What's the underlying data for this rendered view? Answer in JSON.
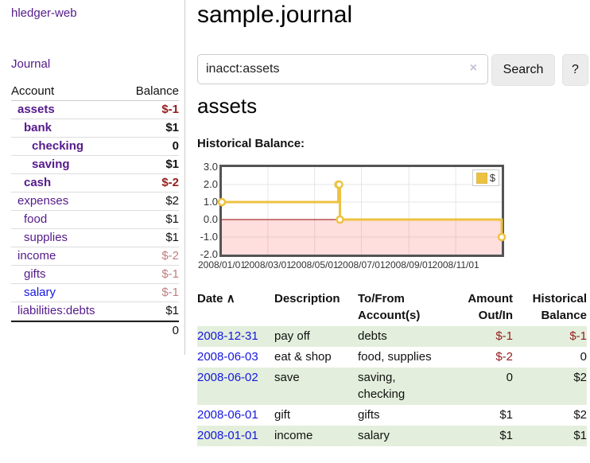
{
  "colors": {
    "link_visited_purple": "#551a8b",
    "link_blue": "#1616e0",
    "negative_strong": "#961c1c",
    "negative_soft": "#c17f7f",
    "row_stripe_green": "#e3efdc",
    "chart_series_yellow": "#edc240",
    "chart_negative_region": "rgba(255,70,70,0.18)",
    "chart_zero_line": "#990000"
  },
  "sidebar": {
    "brand": "hledger-web",
    "nav": {
      "journal": "Journal"
    },
    "table": {
      "account_header": "Account",
      "balance_header": "Balance"
    },
    "accounts": [
      {
        "name": "assets",
        "balance": "$-1"
      },
      {
        "name": "bank",
        "balance": "$1"
      },
      {
        "name": "checking",
        "balance": "0"
      },
      {
        "name": "saving",
        "balance": "$1"
      },
      {
        "name": "cash",
        "balance": "$-2"
      },
      {
        "name": "expenses",
        "balance": "$2"
      },
      {
        "name": "food",
        "balance": "$1"
      },
      {
        "name": "supplies",
        "balance": "$1"
      },
      {
        "name": "income",
        "balance": "$-2"
      },
      {
        "name": "gifts",
        "balance": "$-1"
      },
      {
        "name": "salary",
        "balance": "$-1"
      },
      {
        "name": "liabilities:debts",
        "balance": "$1"
      }
    ],
    "total": "0"
  },
  "main": {
    "title": "sample.journal",
    "search": {
      "value": "inacct:assets",
      "clear_icon": "×",
      "search_label": "Search",
      "help_label": "?"
    },
    "account_heading": "assets",
    "chart_label": "Historical Balance:"
  },
  "chart_data": {
    "type": "line",
    "step": true,
    "title": "Historical Balance",
    "legend_position": "top-right",
    "grid": true,
    "ylim": [
      -2,
      3
    ],
    "x_range": [
      "2008-01-01",
      "2008-12-31"
    ],
    "y_ticks": [
      3,
      2,
      1,
      0,
      -1,
      -2
    ],
    "y_tick_labels": [
      "3.0",
      "2.0",
      "1.0",
      "0.0",
      "-1.0",
      "-2.0"
    ],
    "x_tick_dates": [
      "2008-01-01",
      "2008-03-01",
      "2008-05-01",
      "2008-07-01",
      "2008-09-01",
      "2008-11-01"
    ],
    "x_tick_labels": [
      "2008/01/01",
      "2008/03/01",
      "2008/05/01",
      "2008/07/01",
      "2008/09/01",
      "2008/11/01"
    ],
    "series": [
      {
        "name": "$",
        "color": "#edc240",
        "points": [
          [
            "2008-01-01",
            1
          ],
          [
            "2008-06-01",
            2
          ],
          [
            "2008-06-02",
            2
          ],
          [
            "2008-06-03",
            0
          ],
          [
            "2008-12-31",
            -1
          ]
        ]
      }
    ]
  },
  "register": {
    "headers": {
      "date": "Date",
      "sort_icon": "∧",
      "description": "Description",
      "accounts": "To/From\nAccount(s)",
      "amount": "Amount\nOut/In",
      "balance": "Historical\nBalance"
    },
    "rows": [
      {
        "date": "2008-12-31",
        "description": "pay off",
        "accounts": "debts",
        "amount": "$-1",
        "balance": "$-1"
      },
      {
        "date": "2008-06-03",
        "description": "eat & shop",
        "accounts": "food, supplies",
        "amount": "$-2",
        "balance": "0"
      },
      {
        "date": "2008-06-02",
        "description": "save",
        "accounts": "saving,\nchecking",
        "amount": "0",
        "balance": "$2"
      },
      {
        "date": "2008-06-01",
        "description": "gift",
        "accounts": "gifts",
        "amount": "$1",
        "balance": "$2"
      },
      {
        "date": "2008-01-01",
        "description": "income",
        "accounts": "salary",
        "amount": "$1",
        "balance": "$1"
      }
    ]
  }
}
